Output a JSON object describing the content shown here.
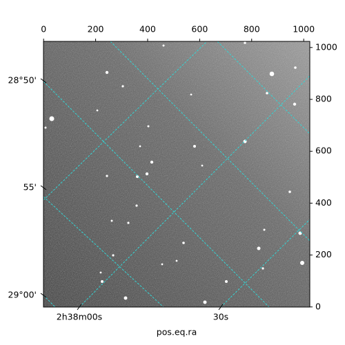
{
  "chart_data": {
    "type": "image",
    "xlabel": "pos.eq.ra",
    "xlim": [
      -0.5,
      1023.5
    ],
    "xticks": [
      0,
      200,
      400,
      600,
      800,
      1000
    ],
    "ylim": [
      -0.5,
      1023.5
    ],
    "yticks": [
      0,
      200,
      400,
      600,
      800,
      1000
    ],
    "ra_tick_labels": [
      "2h38m00s",
      "30s"
    ],
    "dec_tick_labels": [
      "28°50'",
      "55'",
      "29°00'"
    ],
    "grid_color": "#33d6d6"
  }
}
